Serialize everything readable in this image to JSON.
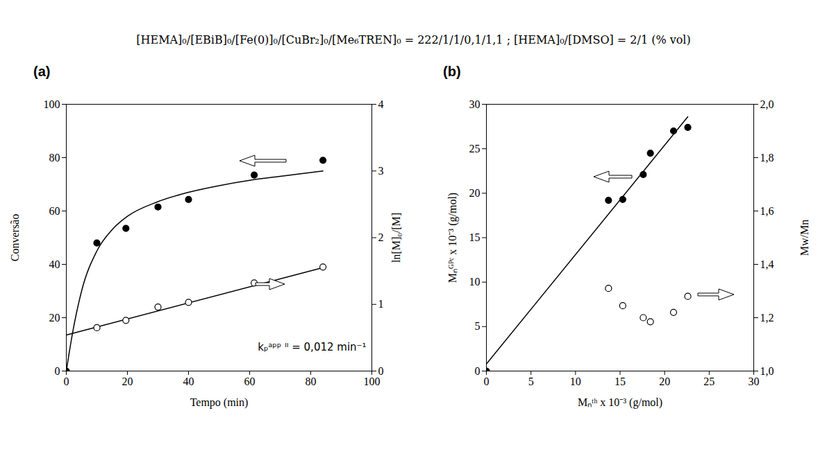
{
  "title": "[HEMA]₀/[EBiB]₀/[Fe(0)]₀/[CuBr₂]₀/[Me₆TREN]₀ = 222/1/1/0,1/1,1 ; [HEMA]₀/[DMSO] = 2/1 (% vol)",
  "chart_data": [
    {
      "type": "scatter",
      "title": "(a)",
      "x_label": "Tempo (min)",
      "y_label": "Conversão",
      "y2_label": "ln[M]₀/[M]",
      "xlim": [
        0,
        100
      ],
      "xticks": [
        0,
        20,
        40,
        60,
        80,
        100
      ],
      "ylim": [
        0,
        100
      ],
      "yticks": [
        0,
        20,
        40,
        60,
        80,
        100
      ],
      "y2lim": [
        0,
        4
      ],
      "y2ticks": [
        0,
        1,
        2,
        3,
        4
      ],
      "grid": false,
      "annotations": [
        {
          "text": "kₚᵃᵖᵖ ᴵᴵ = 0,012 min⁻¹"
        }
      ],
      "series": [
        {
          "type": "line",
          "axis": "y",
          "color": "#000000",
          "line_style": "solid",
          "marker": "none",
          "x": [
            0,
            2,
            5,
            10,
            15,
            20,
            30,
            40,
            50,
            60,
            70,
            84
          ],
          "values": [
            0,
            14,
            30,
            45,
            53,
            58,
            63.5,
            67,
            69.5,
            71.5,
            73,
            75
          ]
        },
        {
          "type": "scatter",
          "axis": "y",
          "color": "#000000",
          "marker": "circle_filled",
          "x": [
            0,
            10,
            19.5,
            30,
            40,
            61.5,
            84
          ],
          "values": [
            0,
            48,
            53.5,
            61.5,
            64.3,
            73.5,
            79
          ]
        },
        {
          "type": "line",
          "axis": "y2",
          "color": "#000000",
          "line_style": "solid",
          "marker": "none",
          "x": [
            0,
            84
          ],
          "values": [
            0.54,
            1.55
          ]
        },
        {
          "type": "scatter",
          "axis": "y2",
          "color": "#000000",
          "marker": "circle_open",
          "x": [
            10,
            19.5,
            30,
            40,
            61.5,
            84
          ],
          "values": [
            0.65,
            0.76,
            0.96,
            1.03,
            1.32,
            1.56
          ]
        }
      ]
    },
    {
      "type": "scatter",
      "title": "(b)",
      "x_label": "Mₙᵗʰ x 10⁻³ (g/mol)",
      "y_label": "Mₙᴳᴾᶜ x 10⁻³ (g/mol)",
      "y2_label": "Mw/Mn",
      "xlim": [
        0,
        30
      ],
      "xticks": [
        0,
        5,
        10,
        15,
        20,
        25,
        30
      ],
      "ylim": [
        0,
        30
      ],
      "yticks": [
        0,
        5,
        10,
        15,
        20,
        25,
        30
      ],
      "y2lim": [
        1.0,
        2.0
      ],
      "y2ticks": [
        {
          "value": 1.0,
          "label": "1,0"
        },
        {
          "value": 1.2,
          "label": "1,2"
        },
        {
          "value": 1.4,
          "label": "1,4"
        },
        {
          "value": 1.6,
          "label": "1,6"
        },
        {
          "value": 1.8,
          "label": "1,8"
        },
        {
          "value": 2.0,
          "label": "2,0"
        }
      ],
      "grid": false,
      "series": [
        {
          "type": "line",
          "axis": "y",
          "color": "#000000",
          "line_style": "solid",
          "marker": "none",
          "x": [
            0,
            22.6
          ],
          "values": [
            0.8,
            28.6
          ]
        },
        {
          "type": "scatter",
          "axis": "y",
          "color": "#000000",
          "marker": "circle_filled",
          "x": [
            0,
            13.7,
            15.3,
            17.6,
            18.4,
            21,
            22.6
          ],
          "values": [
            0,
            19.2,
            19.3,
            22.1,
            24.5,
            27,
            27.4
          ]
        },
        {
          "type": "scatter",
          "axis": "y2",
          "color": "#000000",
          "marker": "circle_open",
          "x": [
            13.7,
            15.3,
            17.6,
            18.4,
            21,
            22.6
          ],
          "values": [
            1.31,
            1.245,
            1.2,
            1.185,
            1.22,
            1.28
          ]
        }
      ]
    }
  ]
}
